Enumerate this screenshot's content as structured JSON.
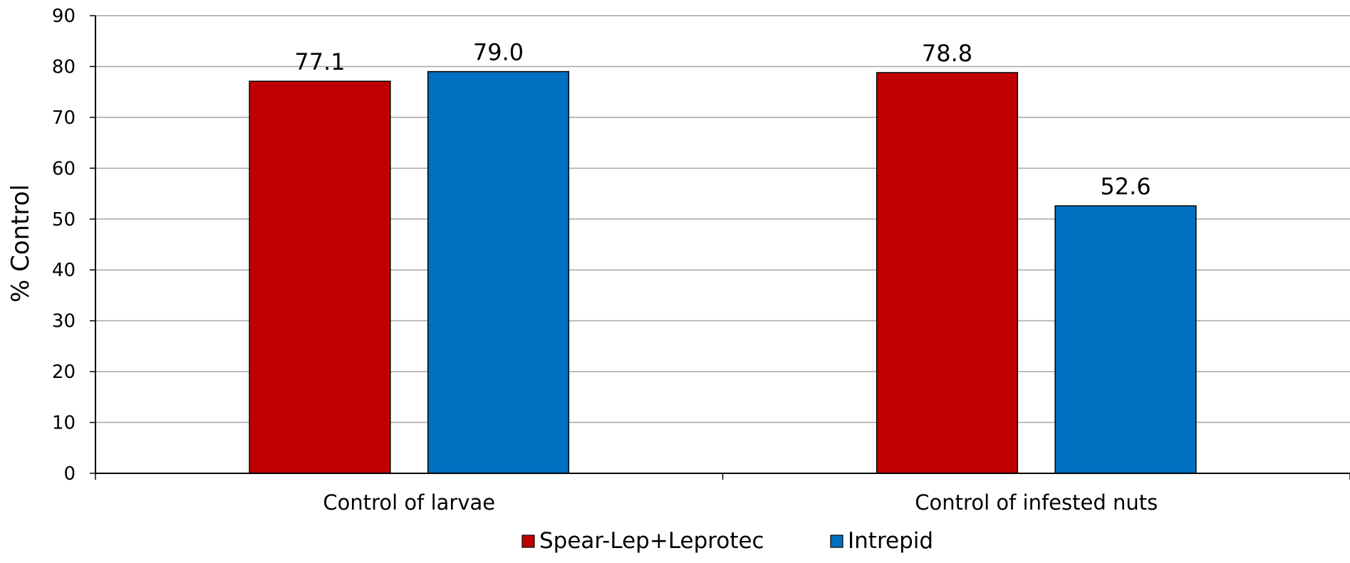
{
  "chart_data": {
    "type": "bar",
    "categories": [
      "Control of larvae",
      "Control of infested nuts"
    ],
    "series": [
      {
        "name": "Spear-Lep+Leprotec",
        "values": [
          77.1,
          78.8
        ],
        "labels": [
          "77.1",
          "78.8"
        ],
        "color": "#c00000"
      },
      {
        "name": "Intrepid",
        "values": [
          79.0,
          52.6
        ],
        "labels": [
          "79.0",
          "52.6"
        ],
        "color": "#0070c0"
      }
    ],
    "ylabel": "% Control",
    "xlabel": "",
    "ylim": [
      0,
      90
    ],
    "yticks": [
      0,
      10,
      20,
      30,
      40,
      50,
      60,
      70,
      80,
      90
    ],
    "grid": true,
    "legend": "bottom"
  }
}
